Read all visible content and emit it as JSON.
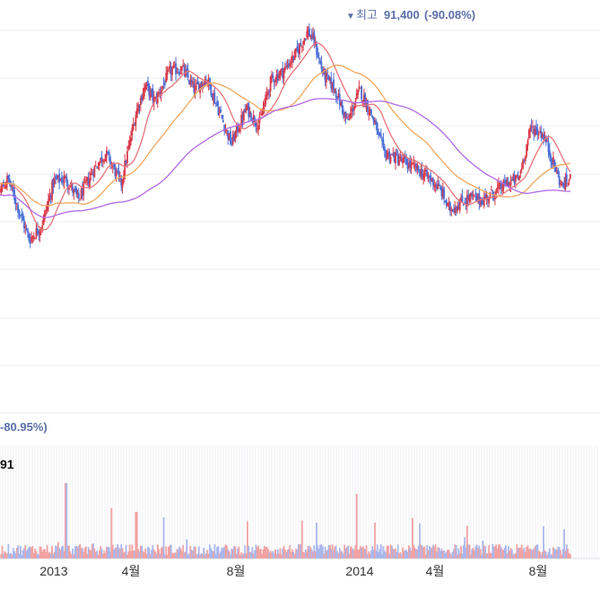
{
  "chart_data": {
    "type": "candlestick",
    "title": "",
    "high_annotation": {
      "marker": "▼",
      "label": "최고",
      "value": "91,400",
      "pct": "(-90.08%)"
    },
    "low_annotation": {
      "value_fragment": "-80.95%)"
    },
    "volume_label": "91",
    "x_ticks": [
      "2013",
      "4월",
      "8월",
      "2014",
      "4월",
      "8월"
    ],
    "moving_averages": [
      {
        "color": "#e8737a"
      },
      {
        "color": "#f0a860"
      },
      {
        "color": "#b16ae6"
      }
    ],
    "colors": {
      "up": "#d93a4a",
      "down": "#4a6fd8",
      "vol_up": "#f2a2a2",
      "vol_down": "#a9b7ec",
      "annotation": "#5b6fa8",
      "grid": "#ececf1"
    },
    "price_keypoints": [
      [
        2012.78,
        60500
      ],
      [
        2012.82,
        56000
      ],
      [
        2012.85,
        59000
      ],
      [
        2012.89,
        51500
      ],
      [
        2012.92,
        46000
      ],
      [
        2012.96,
        49000
      ],
      [
        2013.0,
        58500
      ],
      [
        2013.04,
        59000
      ],
      [
        2013.08,
        54500
      ],
      [
        2013.13,
        61000
      ],
      [
        2013.17,
        64500
      ],
      [
        2013.22,
        58000
      ],
      [
        2013.27,
        73500
      ],
      [
        2013.3,
        79000
      ],
      [
        2013.33,
        75500
      ],
      [
        2013.38,
        82000
      ],
      [
        2013.42,
        82500
      ],
      [
        2013.46,
        78000
      ],
      [
        2013.5,
        80500
      ],
      [
        2013.54,
        73500
      ],
      [
        2013.58,
        66500
      ],
      [
        2013.63,
        74000
      ],
      [
        2013.67,
        70500
      ],
      [
        2013.71,
        80000
      ],
      [
        2013.75,
        82000
      ],
      [
        2013.79,
        85500
      ],
      [
        2013.83,
        90500
      ],
      [
        2013.85,
        88500
      ],
      [
        2013.88,
        81500
      ],
      [
        2013.92,
        78000
      ],
      [
        2013.96,
        71000
      ],
      [
        2014.0,
        78000
      ],
      [
        2014.04,
        72500
      ],
      [
        2014.08,
        64500
      ],
      [
        2014.12,
        63500
      ],
      [
        2014.16,
        62000
      ],
      [
        2014.2,
        60500
      ],
      [
        2014.24,
        58500
      ],
      [
        2014.27,
        56000
      ],
      [
        2014.29,
        52500
      ],
      [
        2014.32,
        53500
      ],
      [
        2014.36,
        55000
      ],
      [
        2014.4,
        54500
      ],
      [
        2014.44,
        56000
      ],
      [
        2014.48,
        58000
      ],
      [
        2014.52,
        59000
      ],
      [
        2014.56,
        70000
      ],
      [
        2014.6,
        68500
      ],
      [
        2014.63,
        63000
      ],
      [
        2014.66,
        57500
      ],
      [
        2014.69,
        59000
      ]
    ]
  }
}
